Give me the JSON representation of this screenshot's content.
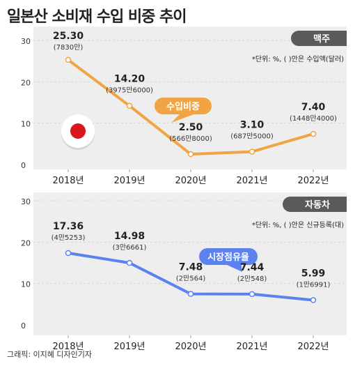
{
  "title": "일본산 소비재 수입 비중 추이",
  "credit": "그래픽: 이지혜 디자인기자",
  "colors": {
    "beer_line": "#f0a443",
    "car_line": "#5b82ef",
    "panel_bg": "#eeeeee",
    "tag_bg": "#5a5a5a",
    "flag_red": "#d7161d"
  },
  "chart_data": [
    {
      "type": "line",
      "panel_tag": "맥주",
      "unit_note": "*단위: %, ( )안은 수입액(달러)",
      "callout": "수입비중",
      "categories": [
        "2018년",
        "2019년",
        "2020년",
        "2021년",
        "2022년"
      ],
      "ylim": [
        0,
        30
      ],
      "yticks": [
        "0",
        "10",
        "20",
        "30"
      ],
      "series": [
        {
          "values": [
            25.3,
            14.2,
            2.5,
            3.1,
            7.4
          ],
          "value_labels": [
            "25.30",
            "14.20",
            "2.50",
            "3.10",
            "7.40"
          ],
          "sub_labels": [
            "(7830만)",
            "(3975만6000)",
            "(566만8000)",
            "(687만5000)",
            "(1448만4000)"
          ]
        }
      ]
    },
    {
      "type": "line",
      "panel_tag": "자동차",
      "unit_note": "*단위: %, ( )안은 신규등록(대)",
      "callout": "시장점유율",
      "categories": [
        "2018년",
        "2019년",
        "2020년",
        "2021년",
        "2022년"
      ],
      "ylim": [
        0,
        30
      ],
      "yticks": [
        "0",
        "10",
        "20",
        "30"
      ],
      "series": [
        {
          "values": [
            17.36,
            14.98,
            7.48,
            7.44,
            5.99
          ],
          "value_labels": [
            "17.36",
            "14.98",
            "7.48",
            "7.44",
            "5.99"
          ],
          "sub_labels": [
            "(4만5253)",
            "(3만6661)",
            "(2만564)",
            "(2만548)",
            "(1만6991)"
          ]
        }
      ]
    }
  ]
}
